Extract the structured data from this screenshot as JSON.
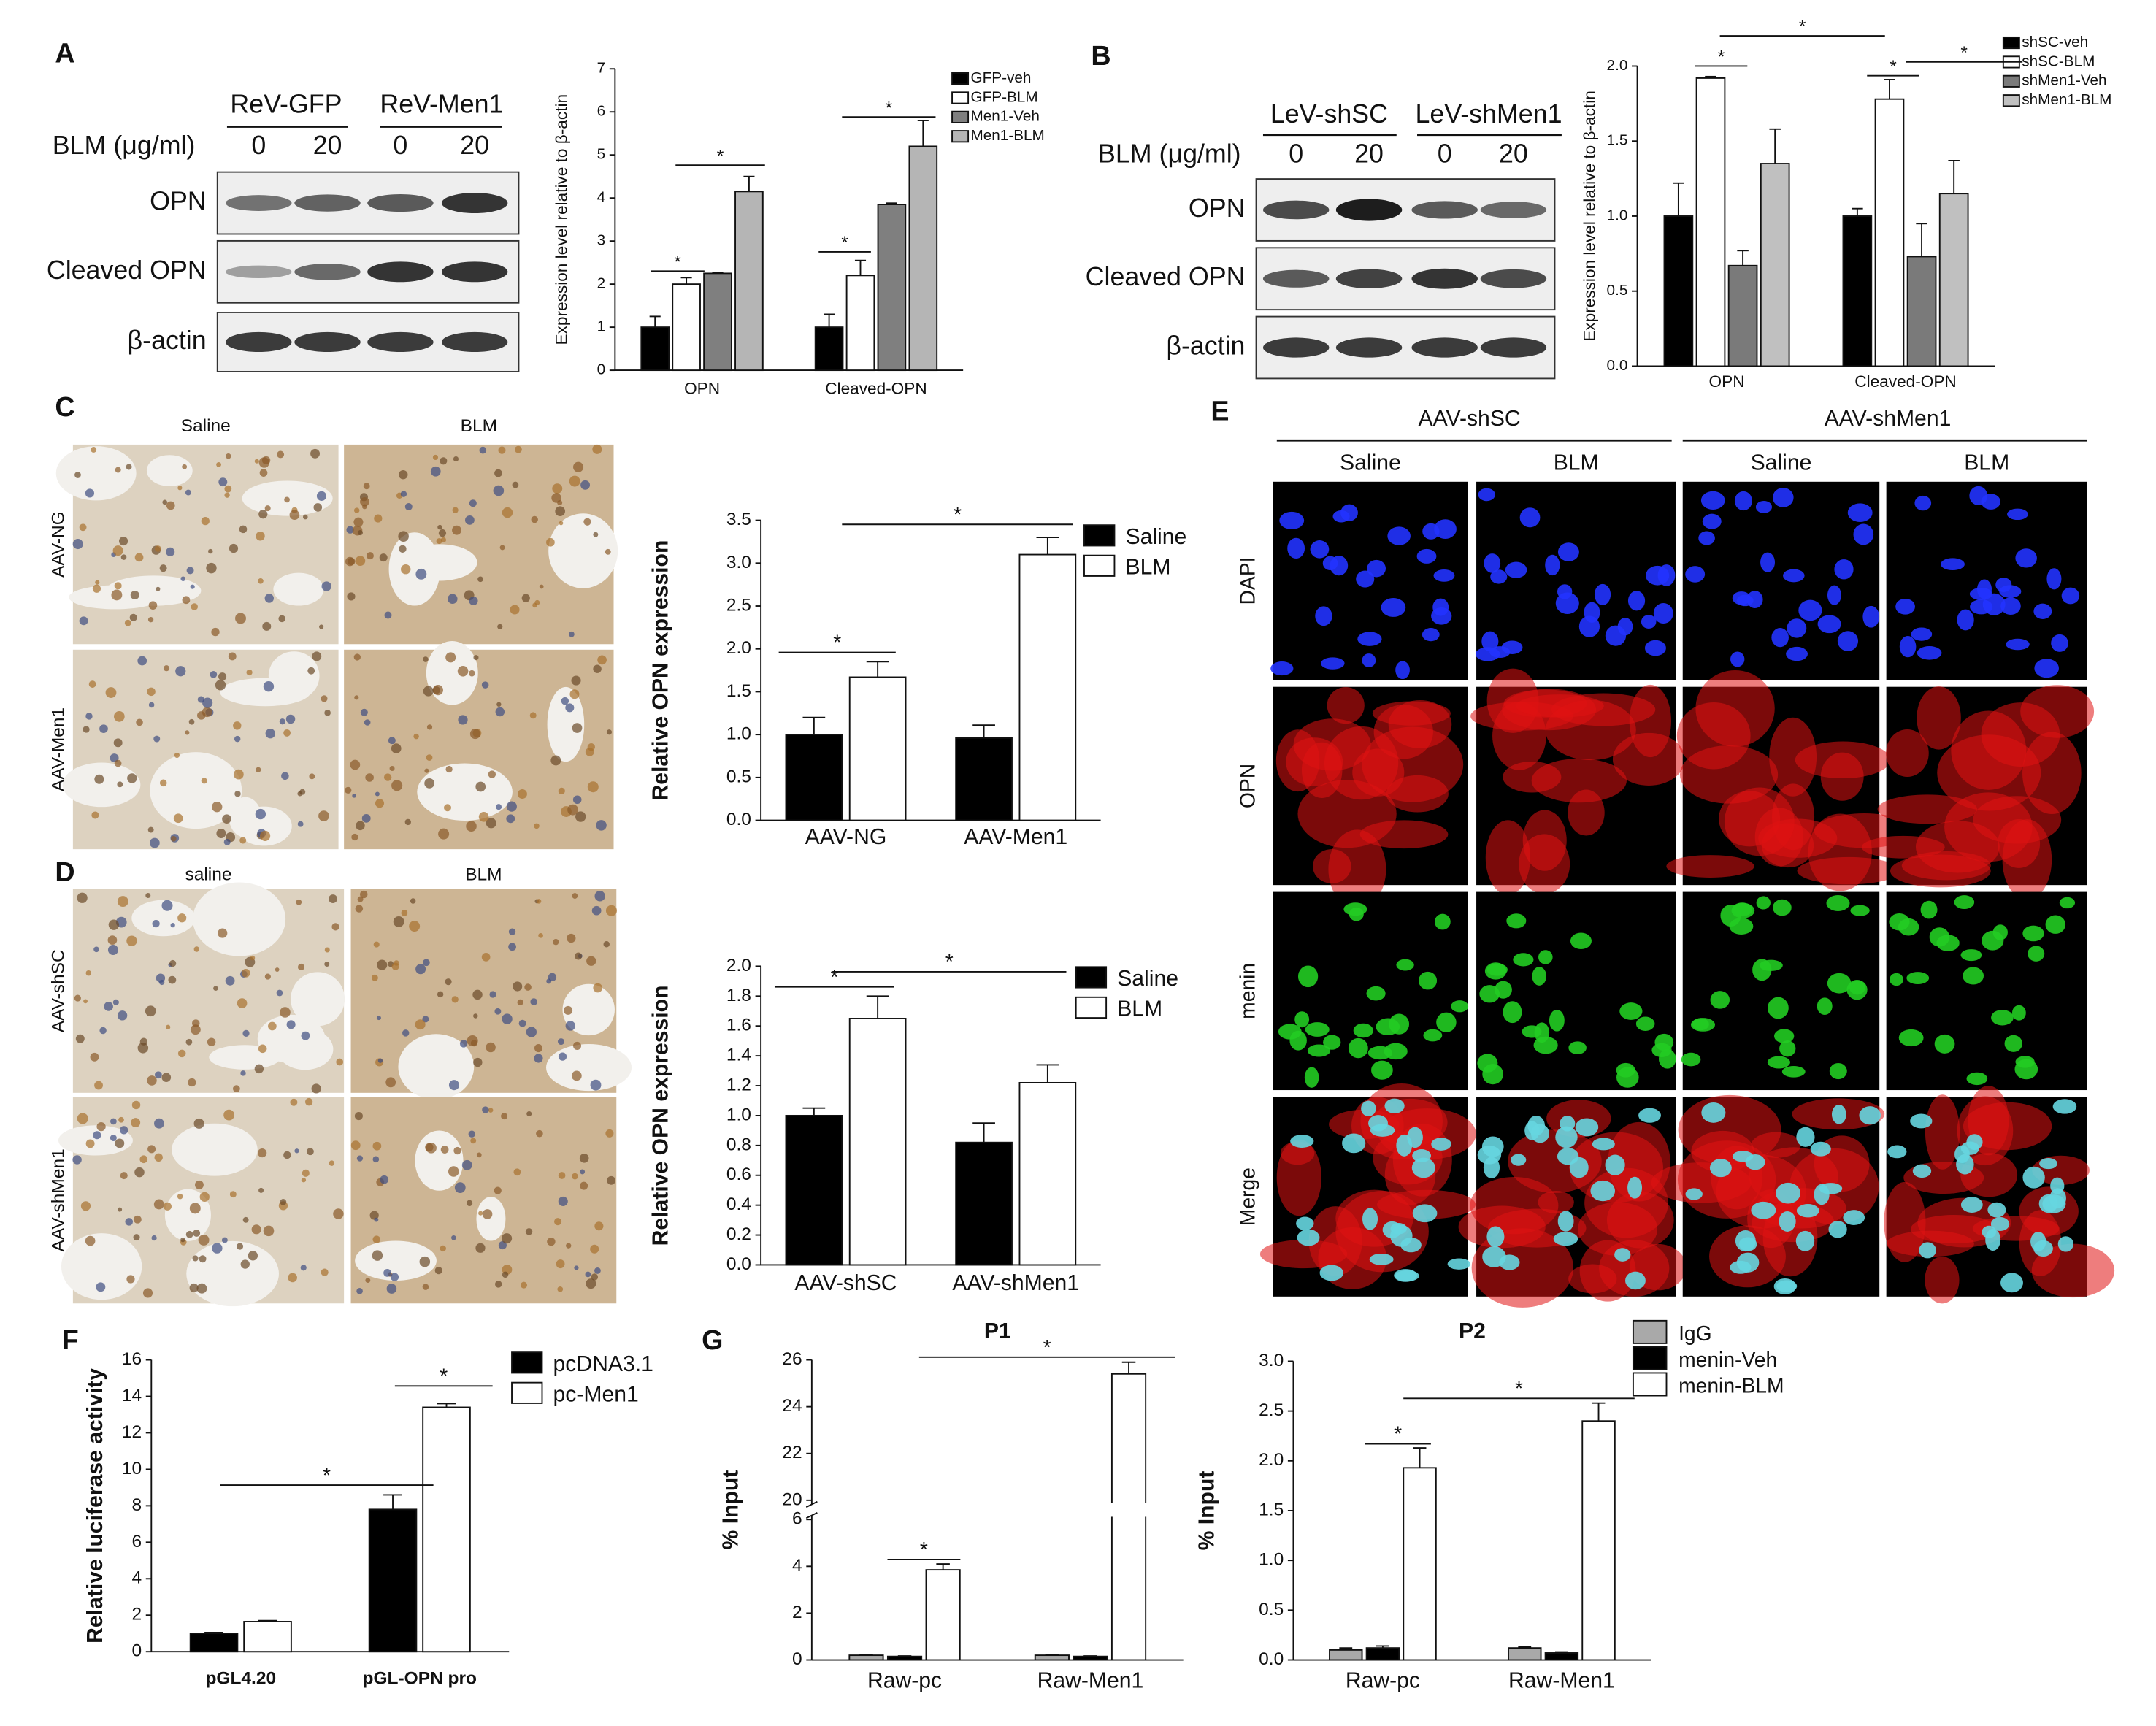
{
  "figure": {
    "panel_labels": [
      "A",
      "B",
      "C",
      "D",
      "E",
      "F",
      "G"
    ],
    "blots": [
      {
        "groups": [
          "ReV-GFP",
          "ReV-Men1"
        ],
        "dose_label": "BLM (μg/ml)",
        "doses": [
          "0",
          "20",
          "0",
          "20"
        ],
        "rows": [
          "OPN",
          "Cleaved OPN",
          "β-actin"
        ]
      },
      {
        "groups": [
          "LeV-shSC",
          "LeV-shMen1"
        ],
        "dose_label": "BLM (μg/ml)",
        "doses": [
          "0",
          "20",
          "0",
          "20"
        ],
        "rows": [
          "OPN",
          "Cleaved OPN",
          "β-actin"
        ]
      }
    ],
    "histology": [
      {
        "columns": [
          "Saline",
          "BLM"
        ],
        "rows": [
          "AAV-NG",
          "AAV-Men1"
        ]
      },
      {
        "columns": [
          "saline",
          "BLM"
        ],
        "rows": [
          "AAV-shSC",
          "AAV-shMen1"
        ]
      }
    ],
    "fluorescence": {
      "groups": [
        "AAV-shSC",
        "AAV-shMen1"
      ],
      "columns": [
        "Saline",
        "BLM",
        "Saline",
        "BLM"
      ],
      "rows": [
        "DAPI",
        "OPN",
        "menin",
        "Merge"
      ]
    }
  },
  "chart_data": [
    {
      "type": "bar",
      "categories": [
        "OPN",
        "Cleaved-OPN"
      ],
      "ylabel": "Expression level relative to β-actin",
      "ylim": [
        0,
        7
      ],
      "yticks": [
        0,
        1,
        2,
        3,
        4,
        5,
        6,
        7
      ],
      "legend": "upper right",
      "series": [
        {
          "name": "GFP-veh",
          "color": "#000000",
          "values": [
            1.0,
            1.0
          ],
          "errors": [
            0.25,
            0.3
          ]
        },
        {
          "name": "GFP-BLM",
          "color": "#ffffff",
          "values": [
            2.0,
            2.2
          ],
          "errors": [
            0.15,
            0.35
          ]
        },
        {
          "name": "Men1-Veh",
          "color": "#7f7f7f",
          "values": [
            2.25,
            3.85
          ],
          "errors": [
            0.02,
            0.03
          ]
        },
        {
          "name": "Men1-BLM",
          "color": "#b5b5b5",
          "values": [
            4.15,
            5.2
          ],
          "errors": [
            0.35,
            0.6
          ]
        }
      ],
      "annotations": [
        "*",
        "*",
        "*",
        "*"
      ]
    },
    {
      "type": "bar",
      "categories": [
        "OPN",
        "Cleaved-OPN"
      ],
      "ylabel": "Expression level relative to β-actin",
      "ylim": [
        0,
        2.0
      ],
      "yticks": [
        {
          "value": 0,
          "label": "0.0"
        },
        0.5,
        {
          "value": 1,
          "label": "1.0"
        },
        1.5,
        {
          "value": 2,
          "label": "2.0"
        }
      ],
      "legend": "upper right",
      "series": [
        {
          "name": "shSC-veh",
          "color": "#000000",
          "values": [
            1.0,
            1.0
          ],
          "errors": [
            0.22,
            0.05
          ]
        },
        {
          "name": "shSC-BLM",
          "color": "#ffffff",
          "values": [
            1.92,
            1.78
          ],
          "errors": [
            0.01,
            0.13
          ]
        },
        {
          "name": "shMen1-Veh",
          "color": "#7a7a7a",
          "values": [
            0.67,
            0.73
          ],
          "errors": [
            0.1,
            0.22
          ]
        },
        {
          "name": "shMen1-BLM",
          "color": "#c0c0c0",
          "values": [
            1.35,
            1.15
          ],
          "errors": [
            0.23,
            0.22
          ]
        }
      ],
      "annotations": [
        "*",
        "*",
        "*",
        "*"
      ]
    },
    {
      "type": "bar",
      "categories": [
        "AAV-NG",
        "AAV-Men1"
      ],
      "ylabel": "Relative OPN expression",
      "ylim": [
        0,
        3.5
      ],
      "yticks": [
        {
          "value": 0,
          "label": "0.0"
        },
        0.5,
        {
          "value": 1,
          "label": "1.0"
        },
        1.5,
        {
          "value": 2,
          "label": "2.0"
        },
        2.5,
        {
          "value": 3,
          "label": "3.0"
        },
        3.5
      ],
      "legend": "upper right",
      "series": [
        {
          "name": "Saline",
          "color": "#000000",
          "values": [
            1.0,
            0.96
          ],
          "errors": [
            0.2,
            0.15
          ]
        },
        {
          "name": "BLM",
          "color": "#ffffff",
          "values": [
            1.67,
            3.1
          ],
          "errors": [
            0.18,
            0.2
          ]
        }
      ],
      "annotations": [
        "*",
        "*"
      ]
    },
    {
      "type": "bar",
      "categories": [
        "AAV-shSC",
        "AAV-shMen1"
      ],
      "ylabel": "Relative OPN expression",
      "ylim": [
        0,
        2.0
      ],
      "yticks": [
        {
          "value": 0,
          "label": "0.0"
        },
        0.2,
        0.4,
        0.6,
        0.8,
        {
          "value": 1,
          "label": "1.0"
        },
        1.2,
        1.4,
        1.6,
        1.8,
        {
          "value": 2,
          "label": "2.0"
        }
      ],
      "legend": "upper right",
      "series": [
        {
          "name": "Saline",
          "color": "#000000",
          "values": [
            1.0,
            0.82
          ],
          "errors": [
            0.05,
            0.13
          ]
        },
        {
          "name": "BLM",
          "color": "#ffffff",
          "values": [
            1.65,
            1.22
          ],
          "errors": [
            0.15,
            0.12
          ]
        }
      ],
      "annotations": [
        "*",
        "*"
      ]
    },
    {
      "type": "bar",
      "categories": [
        "pGL4.20",
        "pGL-OPN pro"
      ],
      "ylabel": "Relative luciferase  activity",
      "ylim": [
        0,
        16
      ],
      "yticks": [
        0,
        2,
        4,
        6,
        8,
        10,
        12,
        14,
        16
      ],
      "legend": "upper right",
      "series": [
        {
          "name": "pcDNA3.1",
          "color": "#000000",
          "values": [
            1.0,
            7.8
          ],
          "errors": [
            0.05,
            0.8
          ]
        },
        {
          "name": "pc-Men1",
          "color": "#ffffff",
          "values": [
            1.65,
            13.4
          ],
          "errors": [
            0.05,
            0.2
          ]
        }
      ],
      "annotations": [
        "*",
        "*"
      ]
    },
    {
      "type": "bar",
      "title": "P1",
      "categories": [
        "Raw-pc",
        "Raw-Men1"
      ],
      "ylabel": "% Input",
      "ylim": [
        0,
        26
      ],
      "ybreak": [
        6,
        20
      ],
      "yticks": [
        0,
        2,
        4,
        6,
        20,
        22,
        24,
        26
      ],
      "series": [
        {
          "color": "#a9a9a9",
          "values": [
            0.2,
            0.2
          ],
          "errors": [
            0.02,
            0.02
          ]
        },
        {
          "color": "#000000",
          "values": [
            0.15,
            0.15
          ],
          "errors": [
            0.02,
            0.02
          ]
        },
        {
          "color": "#ffffff",
          "values": [
            3.85,
            25.4
          ],
          "errors": [
            0.25,
            0.5
          ]
        }
      ],
      "annotations": [
        "*",
        "*"
      ]
    },
    {
      "type": "bar",
      "title": "P2",
      "categories": [
        "Raw-pc",
        "Raw-Men1"
      ],
      "ylabel": "% Input",
      "ylim": [
        0,
        3.0
      ],
      "yticks": [
        {
          "value": 0,
          "label": "0.0"
        },
        0.5,
        {
          "value": 1,
          "label": "1.0"
        },
        1.5,
        {
          "value": 2,
          "label": "2.0"
        },
        2.5,
        {
          "value": 3,
          "label": "3.0"
        }
      ],
      "legend": "upper right",
      "series": [
        {
          "name": "IgG",
          "color": "#a9a9a9",
          "values": [
            0.1,
            0.12
          ],
          "errors": [
            0.02,
            0.01
          ]
        },
        {
          "name": "menin-Veh",
          "color": "#000000",
          "values": [
            0.12,
            0.07
          ],
          "errors": [
            0.02,
            0.01
          ]
        },
        {
          "name": "menin-BLM",
          "color": "#ffffff",
          "values": [
            1.93,
            2.4
          ],
          "errors": [
            0.2,
            0.18
          ]
        }
      ],
      "annotations": [
        "*",
        "*"
      ]
    }
  ]
}
